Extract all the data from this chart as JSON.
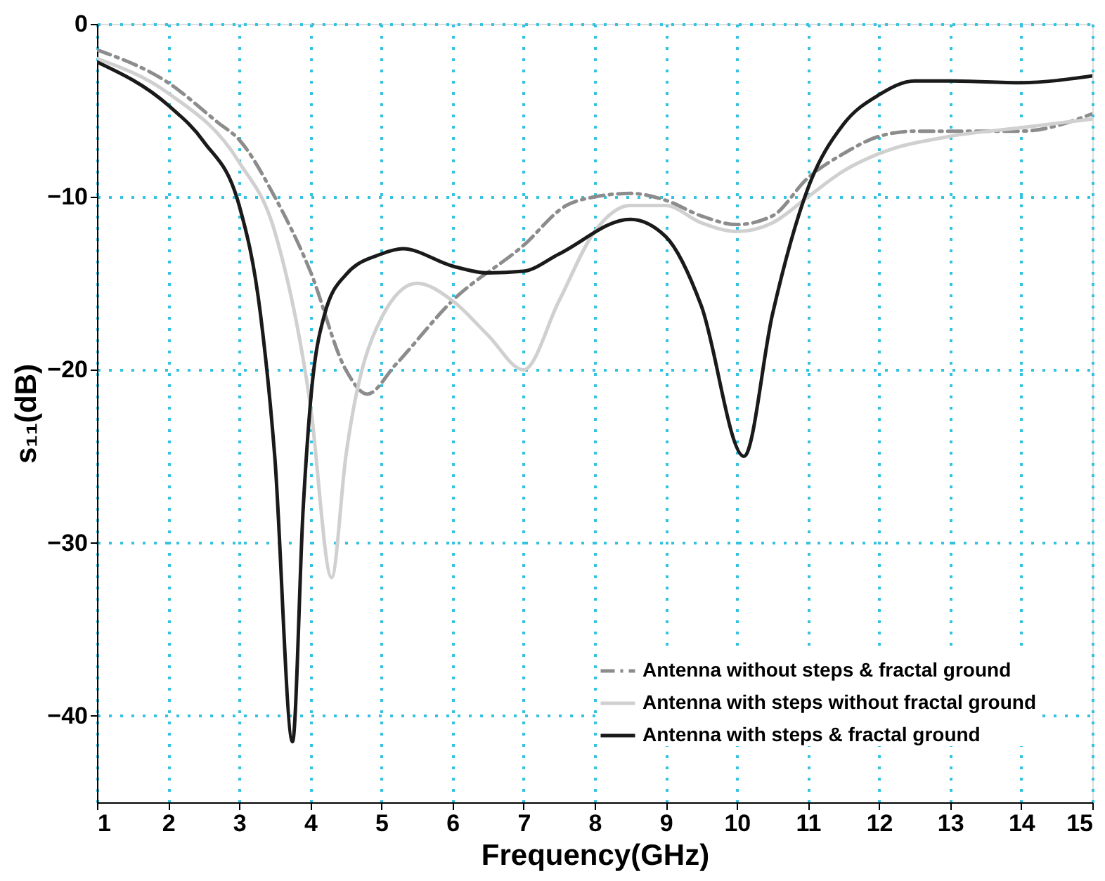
{
  "chart_data": {
    "type": "line",
    "xlabel": "Frequency(GHz)",
    "ylabel": "s₁₁(dB)",
    "xlim": [
      1,
      15
    ],
    "xticks": [
      1,
      2,
      3,
      4,
      5,
      6,
      7,
      8,
      9,
      10,
      11,
      12,
      13,
      14,
      15
    ],
    "ylim": [
      -45,
      0
    ],
    "yticks": [
      -40,
      -30,
      -20,
      -10,
      0
    ],
    "grid": true,
    "legend": "bottom right",
    "marker": "none",
    "series": [
      {
        "name": "Antenna without steps & fractal ground",
        "color": "#8c8c8c",
        "line_style": "dashed",
        "x": [
          1,
          2,
          2.7,
          3,
          3.5,
          4,
          4.5,
          4.8,
          5.2,
          6,
          7,
          7.6,
          8,
          8.5,
          9,
          9.5,
          10,
          10.5,
          11,
          11.5,
          12,
          12.5,
          13,
          14,
          15
        ],
        "values": [
          -1.5,
          -3.4,
          -5.7,
          -6.7,
          -10,
          -14.3,
          -20,
          -21.4,
          -19.7,
          -16,
          -12.8,
          -10.5,
          -10,
          -9.8,
          -10.2,
          -11.1,
          -11.6,
          -11.1,
          -8.9,
          -7.5,
          -6.5,
          -6.2,
          -6.2,
          -6.2,
          -5.2
        ]
      },
      {
        "name": "Antenna with steps without fractal ground",
        "color": "#d0d0d0",
        "line_style": "solid",
        "x": [
          1,
          2,
          3,
          3.5,
          4,
          4.3,
          4.5,
          5,
          5.5,
          6,
          6.5,
          7,
          7.5,
          8,
          8.5,
          9,
          9.5,
          10,
          10.5,
          11,
          11.5,
          12,
          13,
          14,
          15
        ],
        "values": [
          -2,
          -4,
          -8,
          -12,
          -22,
          -32,
          -25,
          -17,
          -15,
          -16,
          -18,
          -20,
          -16,
          -12,
          -10.5,
          -10.5,
          -11.5,
          -12,
          -11.5,
          -10,
          -8.5,
          -7.5,
          -6.5,
          -6,
          -5.5
        ]
      },
      {
        "name": "Antenna with steps & fractal ground",
        "color": "#1a1a1a",
        "line_style": "solid",
        "x": [
          1,
          2,
          2.5,
          3,
          3.3,
          3.5,
          3.75,
          3.9,
          4,
          4.2,
          4.5,
          5,
          5.3,
          6,
          6.5,
          7,
          7.5,
          8.5,
          9,
          9.5,
          10.1,
          10.5,
          11,
          11.5,
          12,
          12.5,
          13,
          14,
          15
        ],
        "values": [
          -2.2,
          -4.7,
          -6.8,
          -10.5,
          -16.8,
          -25,
          -41.5,
          -28,
          -22,
          -16.8,
          -14.5,
          -13.3,
          -13,
          -14,
          -14.4,
          -14.3,
          -13.3,
          -11.3,
          -12.3,
          -16.3,
          -25,
          -16.8,
          -9.5,
          -5.8,
          -4.1,
          -3.3,
          -3.3,
          -3.4,
          -3
        ]
      }
    ]
  }
}
